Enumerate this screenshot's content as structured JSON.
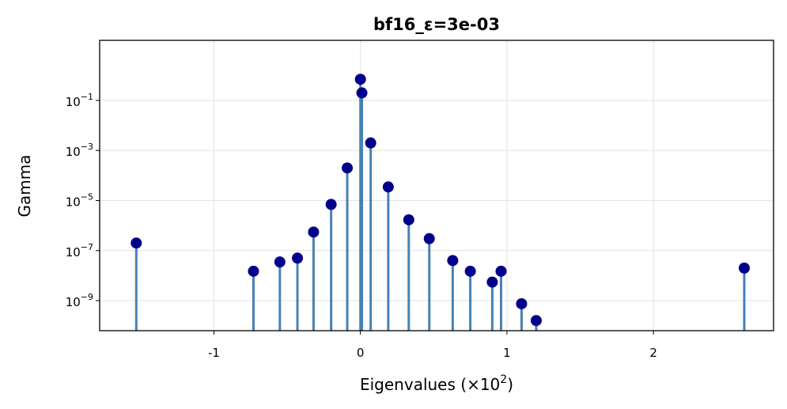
{
  "chart_data": {
    "type": "stem",
    "title": "bf16_ε=3e-03",
    "xlabel": "Eigenvalues (×10",
    "xlabel_sup": "2",
    "xlabel_close": ")",
    "ylabel": "Gamma",
    "y_scale": "log",
    "xlim": [
      -1.78,
      2.82
    ],
    "ylim_exponent": [
      -10.2,
      1.4
    ],
    "grid": true,
    "x_ticks": [
      {
        "value": -1,
        "label": "-1"
      },
      {
        "value": 0,
        "label": "0"
      },
      {
        "value": 1,
        "label": "1"
      },
      {
        "value": 2,
        "label": "2"
      }
    ],
    "y_ticks": [
      {
        "exp": -1,
        "base": "10",
        "sup": "−1"
      },
      {
        "exp": -3,
        "base": "10",
        "sup": "−3"
      },
      {
        "exp": -5,
        "base": "10",
        "sup": "−5"
      },
      {
        "exp": -7,
        "base": "10",
        "sup": "−7"
      },
      {
        "exp": -9,
        "base": "10",
        "sup": "−9"
      }
    ],
    "colors": {
      "stem": "#4682b4",
      "marker": "#00008b",
      "grid": "#e3e3e3"
    },
    "points": [
      {
        "x": -1.53,
        "y": 2e-07
      },
      {
        "x": -0.73,
        "y": 1.5e-08
      },
      {
        "x": -0.55,
        "y": 3.5e-08
      },
      {
        "x": -0.43,
        "y": 5e-08
      },
      {
        "x": -0.32,
        "y": 5.5e-07
      },
      {
        "x": -0.2,
        "y": 7e-06
      },
      {
        "x": -0.09,
        "y": 0.0002
      },
      {
        "x": 0.0,
        "y": 0.7
      },
      {
        "x": 0.01,
        "y": 0.2
      },
      {
        "x": 0.07,
        "y": 0.002
      },
      {
        "x": 0.19,
        "y": 3.5e-05
      },
      {
        "x": 0.33,
        "y": 1.7e-06
      },
      {
        "x": 0.47,
        "y": 3e-07
      },
      {
        "x": 0.63,
        "y": 4e-08
      },
      {
        "x": 0.75,
        "y": 1.5e-08
      },
      {
        "x": 0.9,
        "y": 5.5e-09
      },
      {
        "x": 0.96,
        "y": 1.5e-08
      },
      {
        "x": 1.1,
        "y": 7.5e-10
      },
      {
        "x": 1.2,
        "y": 1.6e-10
      },
      {
        "x": 2.62,
        "y": 2e-08
      }
    ]
  }
}
